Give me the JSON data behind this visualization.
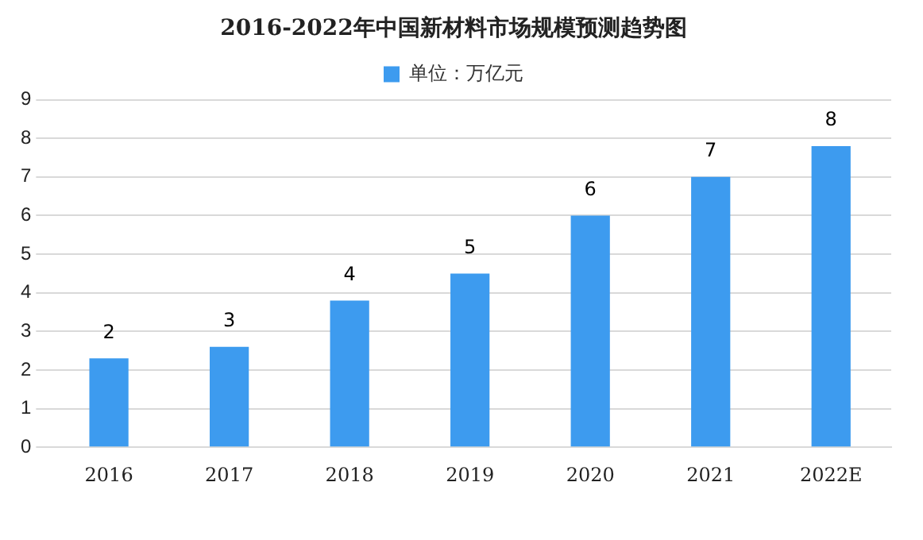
{
  "chart_data": {
    "type": "bar",
    "title": "2016-2022年中国新材料市场规模预测趋势图",
    "categories": [
      "2016",
      "2017",
      "2018",
      "2019",
      "2020",
      "2021",
      "2022E"
    ],
    "series": [
      {
        "name": "单位：万亿元",
        "color": "#3d9bef",
        "values": [
          2.3,
          2.6,
          3.8,
          4.5,
          6.0,
          7.0,
          7.8
        ],
        "value_labels": [
          "2",
          "3",
          "4",
          "5",
          "6",
          "7",
          "8"
        ]
      }
    ],
    "ylim": [
      0,
      9
    ],
    "yticks": [
      0,
      1,
      2,
      3,
      4,
      5,
      6,
      7,
      8,
      9
    ],
    "grid": "y",
    "legend": "top"
  }
}
